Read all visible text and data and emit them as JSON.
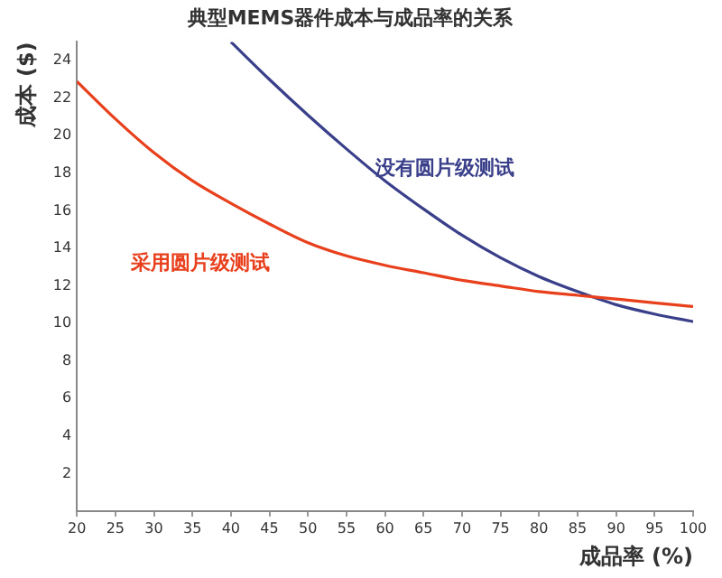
{
  "chart_data": {
    "type": "line",
    "title": "典型MEMS器件成本与成品率的关系",
    "xlabel": "成品率 (%)",
    "ylabel": "成本 ($)",
    "xlim": [
      20,
      100
    ],
    "xticks": [
      20,
      25,
      30,
      35,
      40,
      45,
      50,
      55,
      60,
      65,
      70,
      75,
      80,
      85,
      90,
      95,
      100
    ],
    "ylim": [
      0,
      25
    ],
    "yticks": [
      2,
      4,
      6,
      8,
      10,
      12,
      14,
      16,
      18,
      20,
      22,
      24
    ],
    "grid": false,
    "legend": false,
    "marker": "none",
    "line_style": "solid",
    "series": [
      {
        "name": "采用圆片级测试",
        "color": "#e8401c",
        "x": [
          20,
          25,
          30,
          35,
          40,
          45,
          50,
          55,
          60,
          65,
          70,
          75,
          80,
          85,
          90,
          95,
          100
        ],
        "values": [
          22.9,
          20.9,
          19.1,
          17.6,
          16.4,
          15.3,
          14.3,
          13.6,
          13.1,
          12.7,
          12.3,
          12.0,
          11.7,
          11.5,
          11.3,
          11.1,
          10.9
        ]
      },
      {
        "name": "没有圆片级测试",
        "color": "#3a3f8a",
        "x": [
          40,
          45,
          50,
          55,
          60,
          65,
          70,
          75,
          80,
          85,
          90,
          95,
          100
        ],
        "values": [
          25,
          23.0,
          21.1,
          19.3,
          17.6,
          16.1,
          14.7,
          13.5,
          12.5,
          11.7,
          11.0,
          10.5,
          10.1
        ]
      }
    ]
  }
}
